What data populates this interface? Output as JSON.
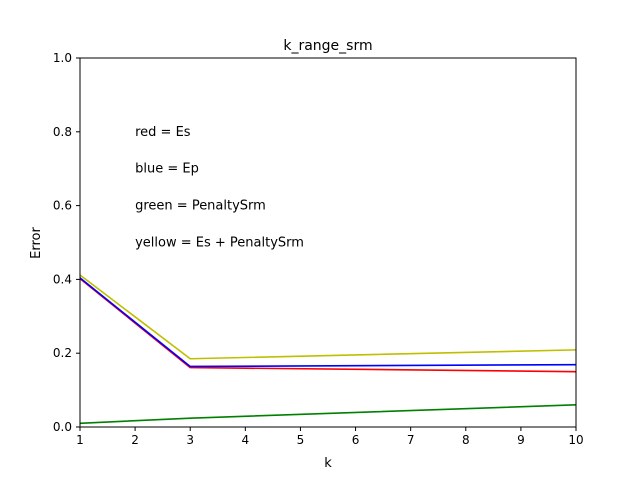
{
  "chart_data": {
    "type": "line",
    "title": "k_range_srm",
    "xlabel": "k",
    "ylabel": "Error",
    "xlim": [
      1,
      10
    ],
    "ylim": [
      0.0,
      1.0
    ],
    "grid": false,
    "x_ticks": [
      "1",
      "2",
      "3",
      "4",
      "5",
      "6",
      "7",
      "8",
      "9",
      "10"
    ],
    "y_ticks": [
      "0.0",
      "0.2",
      "0.4",
      "0.6",
      "0.8",
      "1.0"
    ],
    "x": [
      1,
      3,
      10
    ],
    "series": [
      {
        "color": "#ff0000",
        "values": [
          0.402,
          0.161,
          0.15
        ]
      },
      {
        "color": "#0000ff",
        "values": [
          0.404,
          0.164,
          0.169
        ]
      },
      {
        "color": "#008000",
        "values": [
          0.01,
          0.024,
          0.06
        ]
      },
      {
        "color": "#bfbf00",
        "values": [
          0.412,
          0.185,
          0.209
        ]
      }
    ],
    "annotations": [
      {
        "text": "red = Es",
        "x": 2,
        "y": 0.8
      },
      {
        "text": "blue = Ep",
        "x": 2,
        "y": 0.7
      },
      {
        "text": "green = PenaltySrm",
        "x": 2,
        "y": 0.6
      },
      {
        "text": "yellow = Es + PenaltySrm",
        "x": 2,
        "y": 0.5
      }
    ]
  }
}
